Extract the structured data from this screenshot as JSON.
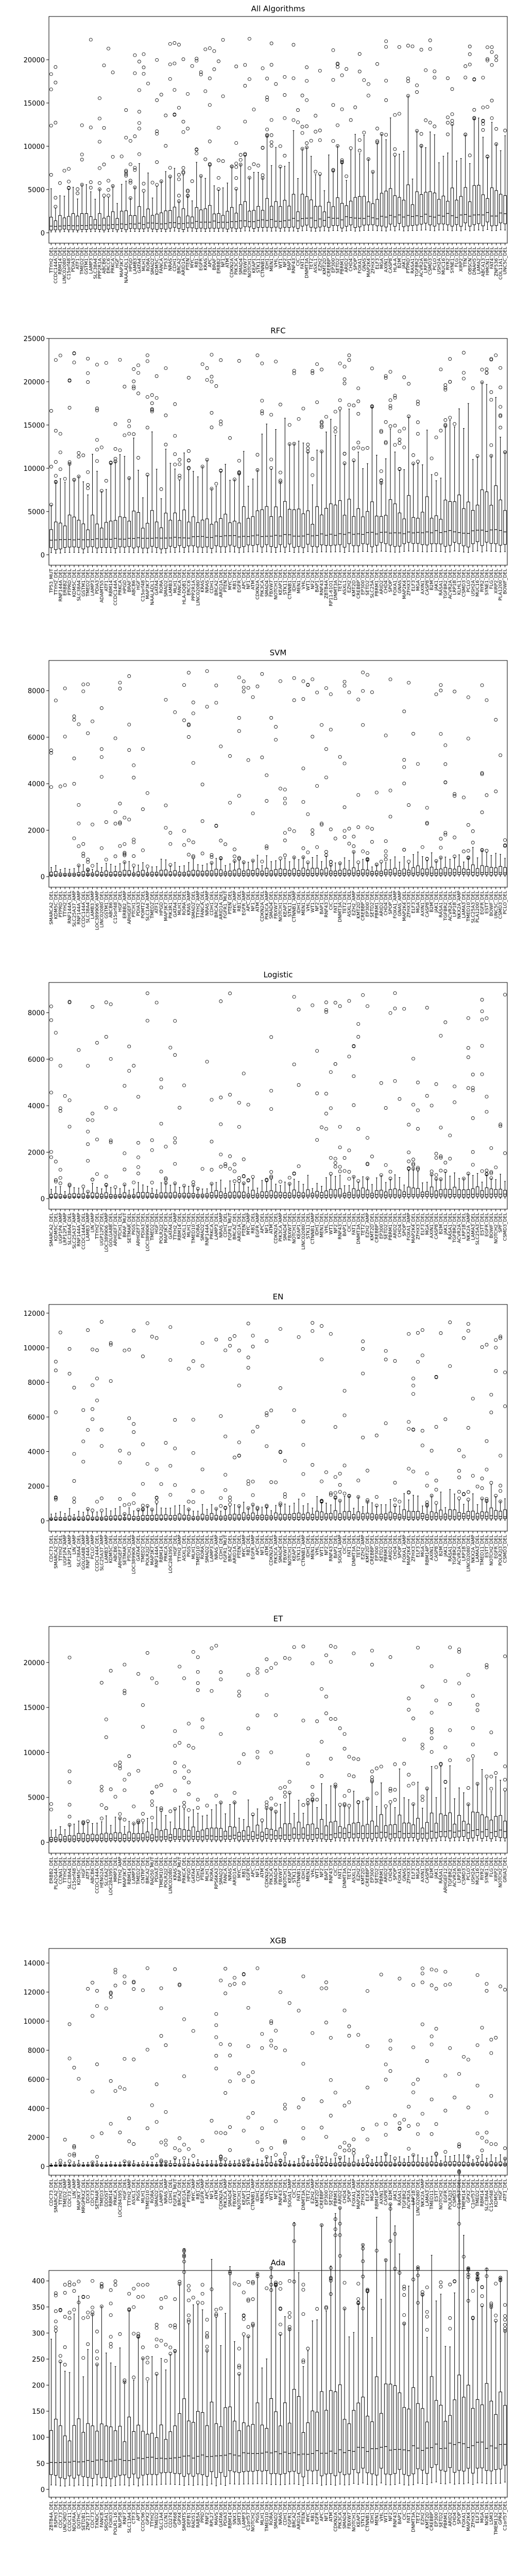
{
  "chart_data": [
    {
      "type": "box",
      "title": "All Algorithms",
      "xlabel": "",
      "ylabel": "",
      "ylim": [
        -1200,
        25000
      ],
      "yticks": [
        0,
        5000,
        10000,
        15000,
        20000
      ],
      "categories": [
        "TTYH2_DEL",
        "CCDC144A_DEL",
        "RBM14_DEL",
        "LINC02080_DEL",
        "C15orf48_DEL",
        "PDIA3_DEL",
        "ATF1_DEL",
        "TMED2_DEL",
        "GSTM1_DEL",
        "LAMP3_DEL",
        "SLC38A4_DEL",
        "PPP2R1A_DEL",
        "ABCB6_DEL",
        "ERCC6_DEL",
        "PRKCA_DEL",
        "HGF_DEL",
        "MAP3K7_DEL",
        "NAALADL1_DEL",
        "HPGD_DEL",
        "LAMB3_DEL",
        "GATA4_DEL",
        "MLH1_DEL",
        "RORA_DEL",
        "SMAD2_DEL",
        "KDM5C_DEL",
        "FANCA_DEL",
        "TP53_DEL",
        "NRAS_DEL",
        "CDH1_DEL",
        "BRCA2_DEL",
        "ARID1A_DEL",
        "PTEN_DEL",
        "MYC_DEL",
        "RB1_DEL",
        "EGFR_DEL",
        "KRAS_DEL",
        "APC_DEL",
        "BRAF_DEL",
        "ERBB2_DEL",
        "NF1_DEL",
        "ATM_DEL",
        "CDKN2A_DEL",
        "PIK3CA_DEL",
        "SMAD4_DEL",
        "FBXW7_DEL",
        "NOTCH1_DEL",
        "KEAP1_DEL",
        "STK11_DEL",
        "CTNNB1_DEL",
        "IDH1_DEL",
        "MEN1_DEL",
        "VHL_DEL",
        "WT1_DEL",
        "NF2_DEL",
        "BAP1_DEL",
        "RNF43_DEL",
        "CIC_DEL",
        "FAT1_DEL",
        "DNMT3A_DEL",
        "TET2_DEL",
        "ASXL1_DEL",
        "EZH2_DEL",
        "KMT2D_DEL",
        "CREBBP_DEL",
        "EP300_DEL",
        "SETD2_DEL",
        "PBRM1_DEL",
        "ARID2_DEL",
        "CHD4_DEL",
        "SPOP_DEL",
        "FOXA1_DEL",
        "GNAS_DEL",
        "MAP2K4_DEL",
        "ZFHX3_DEL",
        "ELF3_DEL",
        "MGA_DEL",
        "AXIN1_DEL",
        "CASP8_DEL",
        "HLA-A_DEL",
        "B2M_DEL",
        "JAK1_DEL",
        "PTPRD_DEL",
        "RASA1_DEL",
        "TGFBR2_DEL",
        "ACVR2A_DEL",
        "LRP1B_DEL",
        "CSMD3_DEL",
        "PCLO_DEL",
        "USH2A_DEL",
        "MUC16_DEL",
        "RYR2_DEL",
        "SYNE1_DEL",
        "FLG_DEL",
        "XIRP2_DEL",
        "TTN_DEL",
        "OBSCN_DEL",
        "DNAH5_DEL",
        "LAMA2_DEL",
        "ABCA13_DEL",
        "HMCN1_DEL",
        "FAT4_DEL",
        "ZNF536_DEL",
        "COL11A1_DEL",
        "UNC5C_DEL"
      ],
      "median_range": [
        500,
        2500
      ],
      "outlier_max": 22500
    },
    {
      "type": "box",
      "title": "RFC",
      "xlabel": "",
      "ylabel": "",
      "ylim": [
        -1200,
        25000
      ],
      "yticks": [
        0,
        5000,
        10000,
        15000,
        20000,
        25000
      ],
      "categories": [
        "TP53_MUT",
        "TTYH2_DEL",
        "RNF144A_DEL",
        "ERBB2_DEL",
        "PTPRD_DEL",
        "KDM5C_DEL",
        "SLC38A4_DEL",
        "GSTM1_DEL",
        "TMED2_DEL",
        "LAMP3_DEL",
        "PDIA3_DEL",
        "ADAMTS5_DEL",
        "ATF1_DEL",
        "RBM14_DEL",
        "CCDC144A_DEL",
        "PRKCA_DEL",
        "HPGD_DEL",
        "BRAF_DEL",
        "ABCB6_DEL",
        "HGF_DEL",
        "C15orf48_DEL",
        "MAP3K7_DEL",
        "NAALADL1_DEL",
        "GATA4_DEL",
        "RORA_DEL",
        "SMAD2_DEL",
        "LAMB3_DEL",
        "MLH1_DEL",
        "FANCA_DEL",
        "HLA-DQB1_DEL",
        "ERCC6_DEL",
        "PPP2R1A_DEL",
        "LINC02080_DEL",
        "KRAS_DEL",
        "NRAS_DEL",
        "CDH1_DEL",
        "BRCA2_DEL",
        "ARID1A_DEL",
        "PTEN_DEL",
        "MYC_DEL",
        "RB1_DEL",
        "EGFR_DEL",
        "APC_DEL",
        "NF1_DEL",
        "ATM_DEL",
        "CDKN2A_DEL",
        "PIK3CA_DEL",
        "SMAD4_DEL",
        "FBXW7_DEL",
        "NOTCH1_DEL",
        "KEAP1_DEL",
        "STK11_DEL",
        "CTNNB1_DEL",
        "IDH1_DEL",
        "MEN1_DEL",
        "VHL_DEL",
        "WT1_DEL",
        "NF2_DEL",
        "BAP1_DEL",
        "RNF43_DEL",
        "ZBTB4A_DEL",
        "RP11-61O1_DEL",
        "DNMT3A_DEL",
        "TET2_DEL",
        "ASXL1_DEL",
        "EZH2_DEL",
        "KMT2D_DEL",
        "CREBBP_DEL",
        "EP300_DEL",
        "SETD2_DEL",
        "SLC25A_DEL",
        "PBRM1_DEL",
        "ARID2_DEL",
        "CHD4_DEL",
        "SPOP_DEL",
        "FOXA1_DEL",
        "GNAS_DEL",
        "MAP2K4_DEL",
        "ZFHX3_DEL",
        "ELF3_DEL",
        "MGA_DEL",
        "AXIN1_DEL",
        "CASP8_DEL",
        "B2M_DEL",
        "JAK1_DEL",
        "RASA1_DEL",
        "TGFBR2_DEL",
        "ACVR2A_DEL",
        "LRP1B_DEL",
        "KLHL1_DEL",
        "CSMD3_DEL",
        "PCLO_DEL",
        "USH2A_DEL",
        "MUC16_DEL",
        "RYR2_DEL",
        "SYNE1_DEL",
        "FLG_DEL",
        "XIRP2_DEL",
        "PLA1200_DEL",
        "BOWF_DEL"
      ],
      "median_range": [
        1500,
        3000
      ],
      "outlier_max": 23500
    },
    {
      "type": "box",
      "title": "SVM",
      "xlabel": "",
      "ylabel": "",
      "ylim": [
        -450,
        9300
      ],
      "yticks": [
        0,
        2000,
        4000,
        6000,
        8000
      ],
      "categories": [
        "SMARCA2_DEL",
        "KDM5C_DEL",
        "PTPRD_DEL",
        "TTYH2_DEL",
        "RNF144A_DEL",
        "SLC25A37_AMP",
        "RNF144A_AMP",
        "CCDC144A_DEL",
        "SLC38A4_DEL",
        "LAMB3_AMP",
        "LOC389906_AMP",
        "LINC02080_DEL",
        "GSTM1_DEL",
        "ABCB6_DEL",
        "C15orf48_DEL",
        "HGF_DEL",
        "ERBB2_AMP",
        "ARHGEF7_DEL",
        "PTCH1_DEL",
        "PDIA3_DEL",
        "POMT2_DEL",
        "SLC1A4_AMP",
        "TMED2_DEL",
        "ATF1_DEL",
        "HPGD_DEL",
        "MAP3K7_DEL",
        "PIK3R1_DEL",
        "GATA4_DEL",
        "MLH1_DEL",
        "RORA_DEL",
        "KRAS_AMP",
        "SMAD2_DEL",
        "TTYH2_AMP",
        "FANCA_DEL",
        "NRAS_AMP",
        "CDH1_DEL",
        "BRCA2_DEL",
        "ARID1A_DEL",
        "FGFR1_MUT",
        "PTEN_DEL",
        "MYC_AMP",
        "RB1_DEL",
        "EGFR_AMP",
        "APC_DEL",
        "NF1_DEL",
        "ATM_DEL",
        "CDKN2A_DEL",
        "PIK3CA_AMP",
        "SMAD4_DEL",
        "FBXW7_DEL",
        "NOTCH1_DEL",
        "KEAP1_DEL",
        "STK11_DEL",
        "CTNNB1_AMP",
        "IDH1_DEL",
        "MEN1_DEL",
        "VHL_DEL",
        "WT1_DEL",
        "NF2_DEL",
        "BAP1_DEL",
        "RNF43_DEL",
        "CIC_DEL",
        "FAT1_DEL",
        "DNMT3A_DEL",
        "TET2_DEL",
        "ASXL1_DEL",
        "EZH2_AMP",
        "KMT2D_DEL",
        "CREBBP_DEL",
        "EP300_DEL",
        "SETD2_DEL",
        "PBRM1_DEL",
        "ARID2_DEL",
        "CHD4_DEL",
        "SPOP_DEL",
        "FOXA1_AMP",
        "GNAS_AMP",
        "MAP2K4_DEL",
        "ZFHX3_DEL",
        "ELF3_DEL",
        "MGA_DEL",
        "AXIN1_DEL",
        "CASP8_DEL",
        "B2M_DEL",
        "JAK1_DEL",
        "RASA1_DEL",
        "TGFBR2_DEL",
        "ACVR2A_DEL",
        "LRP1B_DEL",
        "NKX2A_AMP",
        "LAMA3_DEL",
        "TMED10_DEL",
        "SLC25A3_DEL",
        "PLA1200_DEL",
        "EGFR_DEL",
        "ESTT_DEL",
        "BOWF_DEL",
        "UNC5C_DEL",
        "CSMD3_DEL",
        "PCLO_DEL"
      ],
      "median_range": [
        60,
        200
      ],
      "outlier_max": 8900
    },
    {
      "type": "box",
      "title": "Logistic",
      "xlabel": "",
      "ylabel": "",
      "ylim": [
        -450,
        9300
      ],
      "yticks": [
        0,
        2000,
        4000,
        6000,
        8000
      ],
      "categories": [
        "SMARCA2_DEL",
        "KDM5C_DEL",
        "UGP1P4_AMP",
        "LRP12P1_AMP",
        "SLC38A4_DEL",
        "SLC25A37_AMP",
        "RNF144A_AMP",
        "CCDC144A_DEL",
        "LAMB3_AMP",
        "LIN_AMP",
        "TTYH2_DEL",
        "UGP12P2_DEL",
        "LOC389906_AMP",
        "GOLGA8B_DEL",
        "ARHGEF7_DEL",
        "PTCH1_DEL",
        "BRAF_MUT",
        "SETMAR_DEL",
        "PIGS_DEL",
        "ARHGEF7_DEL",
        "PDIA3_DEL",
        "LOC389906_DEL",
        "TMED2_DEL",
        "HGF_DEL",
        "POLR2J2_DEL",
        "MAP3K7_DEL",
        "GATA4_DEL",
        "TTYH2_AMP",
        "RBM14_DEL",
        "ASXL1_DEL",
        "MLH1_DEL",
        "TMED10_DEL",
        "RORA_DEL",
        "SMAD2_DEL",
        "RNF144A_DEL",
        "PRKCA_DEL",
        "LAMP3_DEL",
        "NRAS_AMP",
        "CDH1_DEL",
        "FGFR1_MUT",
        "BRCA2_DEL",
        "ARID1A_DEL",
        "PTEN_DEL",
        "MYC_AMP",
        "RB1_DEL",
        "EGFR_AMP",
        "APC_DEL",
        "NF1_DEL",
        "ATM_DEL",
        "CDKN2A_DEL",
        "PIK3CA_AMP",
        "SMAD4_DEL",
        "FBXW7_DEL",
        "NOTCH1_DEL",
        "KEAP1_DEL",
        "LINC02080_DEL",
        "STK11_DEL",
        "CTNNB1_AMP",
        "IDH1_DEL",
        "MEN1_DEL",
        "VHL_DEL",
        "WT1_DEL",
        "NF2_DEL",
        "RNF43_DEL",
        "BAP1_DEL",
        "CIC_DEL",
        "FAT1_DEL",
        "DNMT3A_DEL",
        "TET2_DEL",
        "EZH2_AMP",
        "KMT2D_DEL",
        "CREBBP_DEL",
        "EP300_DEL",
        "SETD2_DEL",
        "PBRM1_DEL",
        "ARID2_DEL",
        "CHD4_DEL",
        "SPOP_DEL",
        "FOXA1_AMP",
        "MAP2K4_DEL",
        "ZFHX3_DEL",
        "ELF3_DEL",
        "MGA_DEL",
        "AXIN1_DEL",
        "CASP8_DEL",
        "B2M_DEL",
        "JAK1_DEL",
        "RASA1_DEL",
        "TGFBR2_DEL",
        "ACVR2A_DEL",
        "LRP1B_DEL",
        "NKX2A_AMP",
        "LAMA3_DEL",
        "SLC25A3_DEL",
        "ESTT_DEL",
        "EGFR_DEL",
        "BOWF_DEL",
        "NOTCH2_DEL",
        "SPF_DEL",
        "CSMD3_DEL"
      ],
      "median_range": [
        60,
        220
      ],
      "outlier_max": 8900
    },
    {
      "type": "box",
      "title": "EN",
      "xlabel": "",
      "ylabel": "",
      "ylim": [
        -600,
        12500
      ],
      "yticks": [
        0,
        2000,
        4000,
        6000,
        8000,
        10000,
        12000
      ],
      "categories": [
        "CDC73_DEL",
        "SMARCA2_DEL",
        "TTYH2_DEL",
        "UGP1P4_AMP",
        "LRP12P1_AMP",
        "LIN_AMP",
        "SLC38A4_DEL",
        "GOLGA8B_AMP",
        "RNF144A_AMP",
        "PCLO_AMP",
        "CCDC144A_DEL",
        "SLC25A37_AMP",
        "LAMB3_AMP",
        "KDM5C_DEL",
        "ABCB6_DEL",
        "ARHGEF7_DEL",
        "SETMAR_DEL",
        "PTCH1_DEL",
        "LOC389906_AMP",
        "GATA4_DEL",
        "TMED2_DEL",
        "POLR2J2_DEL",
        "MAP3K7_DEL",
        "RNF144A_DEL",
        "RBM14_DEL",
        "PRKCA_DEL",
        "LOC284395_DEL",
        "HGF_DEL",
        "TTYH2_AMP",
        "ASXL1_DEL",
        "PIGS_DEL",
        "MLH1_DEL",
        "TMED10_DEL",
        "RORA_DEL",
        "SMAD2_DEL",
        "LAMP3_DEL",
        "NRAS_AMP",
        "CDH1_DEL",
        "FGFR1_MUT",
        "BRCA2_DEL",
        "ARID1A_DEL",
        "PTEN_DEL",
        "MYC_AMP",
        "RB1_DEL",
        "EGFR_AMP",
        "APC_DEL",
        "NF1_DEL",
        "ATM_DEL",
        "CDKN2A_DEL",
        "PIK3CA_AMP",
        "SMAD4_DEL",
        "FBXW7_DEL",
        "NOTCH1_DEL",
        "KEAP1_DEL",
        "STK11_DEL",
        "CTNNB1_AMP",
        "IDH1_DEL",
        "MEN1_DEL",
        "VHL_DEL",
        "WT1_DEL",
        "NF2_DEL",
        "RNF43_DEL",
        "BAP1_DEL",
        "SOGA1_AMP",
        "CIC_DEL",
        "FAT1_DEL",
        "DNMT3A_DEL",
        "TET2_DEL",
        "EZH2_AMP",
        "KMT2D_DEL",
        "CREBBP_DEL",
        "EP300_DEL",
        "SETD2_DEL",
        "PBRM1_DEL",
        "ARID2_DEL",
        "CHD4_DEL",
        "SPOP_DEL",
        "FOXA1_AMP",
        "MAP2K4_DEL",
        "ZFHX3_DEL",
        "ELF3_DEL",
        "MGA_DEL",
        "RBM14P_DEL",
        "AXIN1_DEL",
        "CASP8_DEL",
        "B2M_DEL",
        "JAK1_DEL",
        "RASA1_DEL",
        "TGFBR2_DEL",
        "ACVR2A_DEL",
        "LRP1B_DEL",
        "LINC02080_DEL",
        "NKX2A_AMP",
        "LAMA3_DEL",
        "TMED11_DEL",
        "ESTT_DEL",
        "NOTCH2_DEL",
        "EGFR_DEL",
        "POLR2J3_DEL",
        "CSMD3_DEL"
      ],
      "median_range": [
        60,
        300
      ],
      "outlier_max": 11500
    },
    {
      "type": "box",
      "title": "ET",
      "xlabel": "",
      "ylabel": "",
      "ylim": [
        -1200,
        24000
      ],
      "yticks": [
        0,
        5000,
        10000,
        15000,
        20000
      ],
      "categories": [
        "ERBB2_DEL",
        "PLA2G4A_DEL",
        "CCNA1_DEL",
        "TTYH2_DEL",
        "SLC38A4_DEL",
        "C15orf48_DEL",
        "KDM5C_DEL",
        "HGF_DEL",
        "ATF1_DEL",
        "ABCB6_DEL",
        "CCDC144A_DEL",
        "HENG2A_DEL",
        "SLC6A2_DEL",
        "LOC284395_DEL",
        "MMP3_DEL",
        "TTYH2_AMP",
        "MAP3K7_DEL",
        "RBM14_DEL",
        "LAMP3_DEL",
        "TMED2_DEL",
        "CNTRF_DEL",
        "BRCA2_DEL",
        "RAD50_MUT",
        "PDIA3_DEL",
        "TMEM10_DEL",
        "POLR2J2_DEL",
        "LINC02080_DEL",
        "KRAS_DEL",
        "BRAF_MUT",
        "PRKCA_DEL",
        "HPGD_DEL",
        "GATA4_DEL",
        "CDH1_DEL",
        "PTEN_DEL",
        "MLH1_DEL",
        "RORA_DEL",
        "RPS6KA3_DEL",
        "SMAD2_DEL",
        "FANCA_DEL",
        "NRAS_DEL",
        "ARID1A_DEL",
        "MYC_DEL",
        "RB1_DEL",
        "EGFR_DEL",
        "APC_DEL",
        "NF1_DEL",
        "ATM_DEL",
        "CDKN2A_DEL",
        "PIK3CA_DEL",
        "SMAD4_DEL",
        "FBXW7_DEL",
        "NOTCH1_DEL",
        "KEAP1_DEL",
        "STK11_DEL",
        "CTNNB1_DEL",
        "IDH1_DEL",
        "MEN1_DEL",
        "VHL_DEL",
        "WT1_DEL",
        "NF2_DEL",
        "BAP1_DEL",
        "RNF43_DEL",
        "CIC_DEL",
        "FAT1_DEL",
        "DNMT3A_DEL",
        "TET2_DEL",
        "ASXL1_DEL",
        "EZH2_DEL",
        "KMT2D_DEL",
        "CREBBP_DEL",
        "EP300_DEL",
        "SETD2_DEL",
        "PBRM1_DEL",
        "ARID2_DEL",
        "CHD4_DEL",
        "SPOP_DEL",
        "FOXA1_DEL",
        "GNAS_DEL",
        "ZFHX3_DEL",
        "ELF3_DEL",
        "MGA_DEL",
        "AXIN1_DEL",
        "CASP8_DEL",
        "B2M_DEL",
        "JAK1_DEL",
        "RASA1_DEL",
        "ARHGEF12_DEL",
        "TGFBR2_DEL",
        "ACVR2A_DEL",
        "LRP1B_DEL",
        "CSMD3_DEL",
        "PCLO_DEL",
        "USH2A_DEL",
        "MUC16_DEL",
        "RYR2_DEL",
        "SYNE1_DEL",
        "FLG_DEL",
        "XIRP2_DEL",
        "NOTCH2_DEL",
        "GRIA3_DEL"
      ],
      "median_range": [
        150,
        1500
      ],
      "outlier_max": 22000
    },
    {
      "type": "box",
      "title": "XGB",
      "xlabel": "",
      "ylabel": "",
      "ylim": [
        -600,
        15000
      ],
      "yticks": [
        0,
        2000,
        4000,
        6000,
        8000,
        10000,
        12000,
        14000
      ],
      "categories": [
        "CDC73_DEL",
        "SMARCA2_DEL",
        "TTYH2_DEL",
        "TMED2_AMP",
        "CDC73_AMP",
        "LIN_AMP",
        "MAP3K7_AMP",
        "MRGPRX2_DEL",
        "DDX3_DEL",
        "CDC73_DEL",
        "SETMAR_DEL",
        "TMED3_DEL",
        "DDOST_DEL",
        "RBM14_DEL",
        "PRKCA_DEL",
        "LOC284395_DEL",
        "HGF_DEL",
        "TTYH2_AMP",
        "ASXL1_DEL",
        "PIGS_DEL",
        "MLH1_DEL",
        "TMED10_DEL",
        "RORA_DEL",
        "SMAD2_DEL",
        "LAMP3_DEL",
        "NRAS_AMP",
        "CDH1_DEL",
        "FGFR1_MUT",
        "BRCA2_DEL",
        "ARID1A_DEL",
        "PTEN_DEL",
        "MYC_AMP",
        "RB1_DEL",
        "EGFR_AMP",
        "APC_DEL",
        "NF1_DEL",
        "ATM_DEL",
        "CDKN2A_DEL",
        "PIK3CA_AMP",
        "SMAD4_DEL",
        "FBXW7_DEL",
        "NOTCH1_DEL",
        "KEAP1_DEL",
        "STK11_DEL",
        "CTNNB1_AMP",
        "IDH1_DEL",
        "MEN1_DEL",
        "VHL_DEL",
        "WT1_DEL",
        "NF2_DEL",
        "RNF43_DEL",
        "BAP1_DEL",
        "SOGA1_AMP",
        "CIC_DEL",
        "FAT1_DEL",
        "DNMT3A_DEL",
        "TET2_DEL",
        "EZH2_AMP",
        "KMT2D_DEL",
        "CREBBP_DEL",
        "EP300_DEL",
        "SETD2_DEL",
        "PBRM1_DEL",
        "ARID2_DEL",
        "CHD4_DEL",
        "SPOP_DEL",
        "FOXA1_AMP",
        "MAP2K4_DEL",
        "ZFHX3_DEL",
        "ELF3_DEL",
        "MGA_DEL",
        "RBM14P_DEL",
        "AXIN1_DEL",
        "CASP8_DEL",
        "B2M_DEL",
        "JAK1_DEL",
        "RASA1_DEL",
        "TGFBR2_DEL",
        "ACVR2A_DEL",
        "LRP1B_DEL",
        "LINC02080_DEL",
        "NKX2A_AMP",
        "LAMA3_DEL",
        "TMED11_DEL",
        "ESTT_DEL",
        "NOTCH2_DEL",
        "EGFR_DEL",
        "POLR2J3_DEL",
        "CSMD3_DEL",
        "C1orf57_DEL",
        "TMEM14_DEL",
        "GPX2_DEL",
        "C1orf57_DEL",
        "TMED2_DEL",
        "RBM14_DEL",
        "SLC38A4_DEL",
        "C15orf48_DEL",
        "KDM5C_DEL",
        "HGF_DEL",
        "ATF1_DEL"
      ],
      "median_range": [
        40,
        150
      ],
      "outlier_max": 13700
    },
    {
      "type": "box",
      "title": "Ada",
      "xlabel": "",
      "ylabel": "",
      "ylim": [
        -15,
        420
      ],
      "yticks": [
        0,
        50,
        100,
        150,
        200,
        250,
        300,
        350,
        400
      ],
      "categories": [
        "ZBTB4A_DEL",
        "RSPH3_DEL",
        "CDC73_DEL",
        "UNCSRD_DEL",
        "CCDC11_DEL",
        "NDUFAA_DEL",
        "DGTHC_DEL",
        "SETDB1_DEL",
        "ZNF217_DEL",
        "CDC73_DEL",
        "TXNDC_DEL",
        "FANCB_DEL",
        "SRD5A1_DEL",
        "FOXO3_DEL",
        "POLR1-16_DEL",
        "NUP58_DEL",
        "RNF7_DEL",
        "SLC13A4_DEL",
        "CTF3_DEL",
        "APT_DEL",
        "CCDC96_DEL",
        "GPX2_DEL",
        "TTYH2_DEL",
        "TMED2_DEL",
        "SLC1A4_DEL",
        "CLCN1_DEL",
        "CD274_DEL",
        "GPR68_DEL",
        "GPX4_DEL",
        "SMARTS_DEL",
        "DEFB1_DEL",
        "RAD51_DEL",
        "RAB5A_DEL",
        "PPID_DEL",
        "RNF2_DEL",
        "RPL27_DEL",
        "MAVS_DEL",
        "GATA6_DEL",
        "PDIA3_DEL",
        "RBM14_DEL",
        "SNX1_DEL",
        "SIRT3_DEL",
        "LAMP3_DEL",
        "C1orf57_DEL",
        "NOTCH2_DEL",
        "PIGS_DEL",
        "MLH1_DEL",
        "TMED10_DEL",
        "RORA_DEL",
        "SMAD2_DEL",
        "NRAS_DEL",
        "CDH1_DEL",
        "FGFR1_DEL",
        "BRCA2_DEL",
        "ARID1A_DEL",
        "PTEN_DEL",
        "MYC_DEL",
        "RB1_DEL",
        "EGFR_DEL",
        "APC_DEL",
        "NF1_DEL",
        "ATM_DEL",
        "CDKN2A_DEL",
        "PIK3CA_DEL",
        "SMAD4_DEL",
        "FBXW7_DEL",
        "NOTCH1_DEL",
        "KEAP1_DEL",
        "STK11_DEL",
        "CTNNB1_DEL",
        "IDH1_DEL",
        "MEN1_DEL",
        "VHL_DEL",
        "WT1_DEL",
        "NF2_DEL",
        "RNF43_DEL",
        "BAP1_DEL",
        "CIC_DEL",
        "FAT1_DEL",
        "DNMT3A_DEL",
        "TET2_DEL",
        "EZH2_DEL",
        "KMT2D_DEL",
        "CREBBP_DEL",
        "EP300_DEL",
        "SETD2_DEL",
        "PBRM1_DEL",
        "ARID2_DEL",
        "CHD4_DEL",
        "SPOP_DEL",
        "FOXA1_DEL",
        "MAP2K4_DEL",
        "ZFHX3_DEL",
        "ELF3_DEL",
        "MGA_DEL",
        "NOB1_DEL",
        "LSM3_DEL",
        "TMEM132_DEL",
        "GPR4_DEL",
        "C1orf57_DEL"
      ],
      "median_range": [
        45,
        95
      ],
      "outlier_max": 400
    }
  ]
}
